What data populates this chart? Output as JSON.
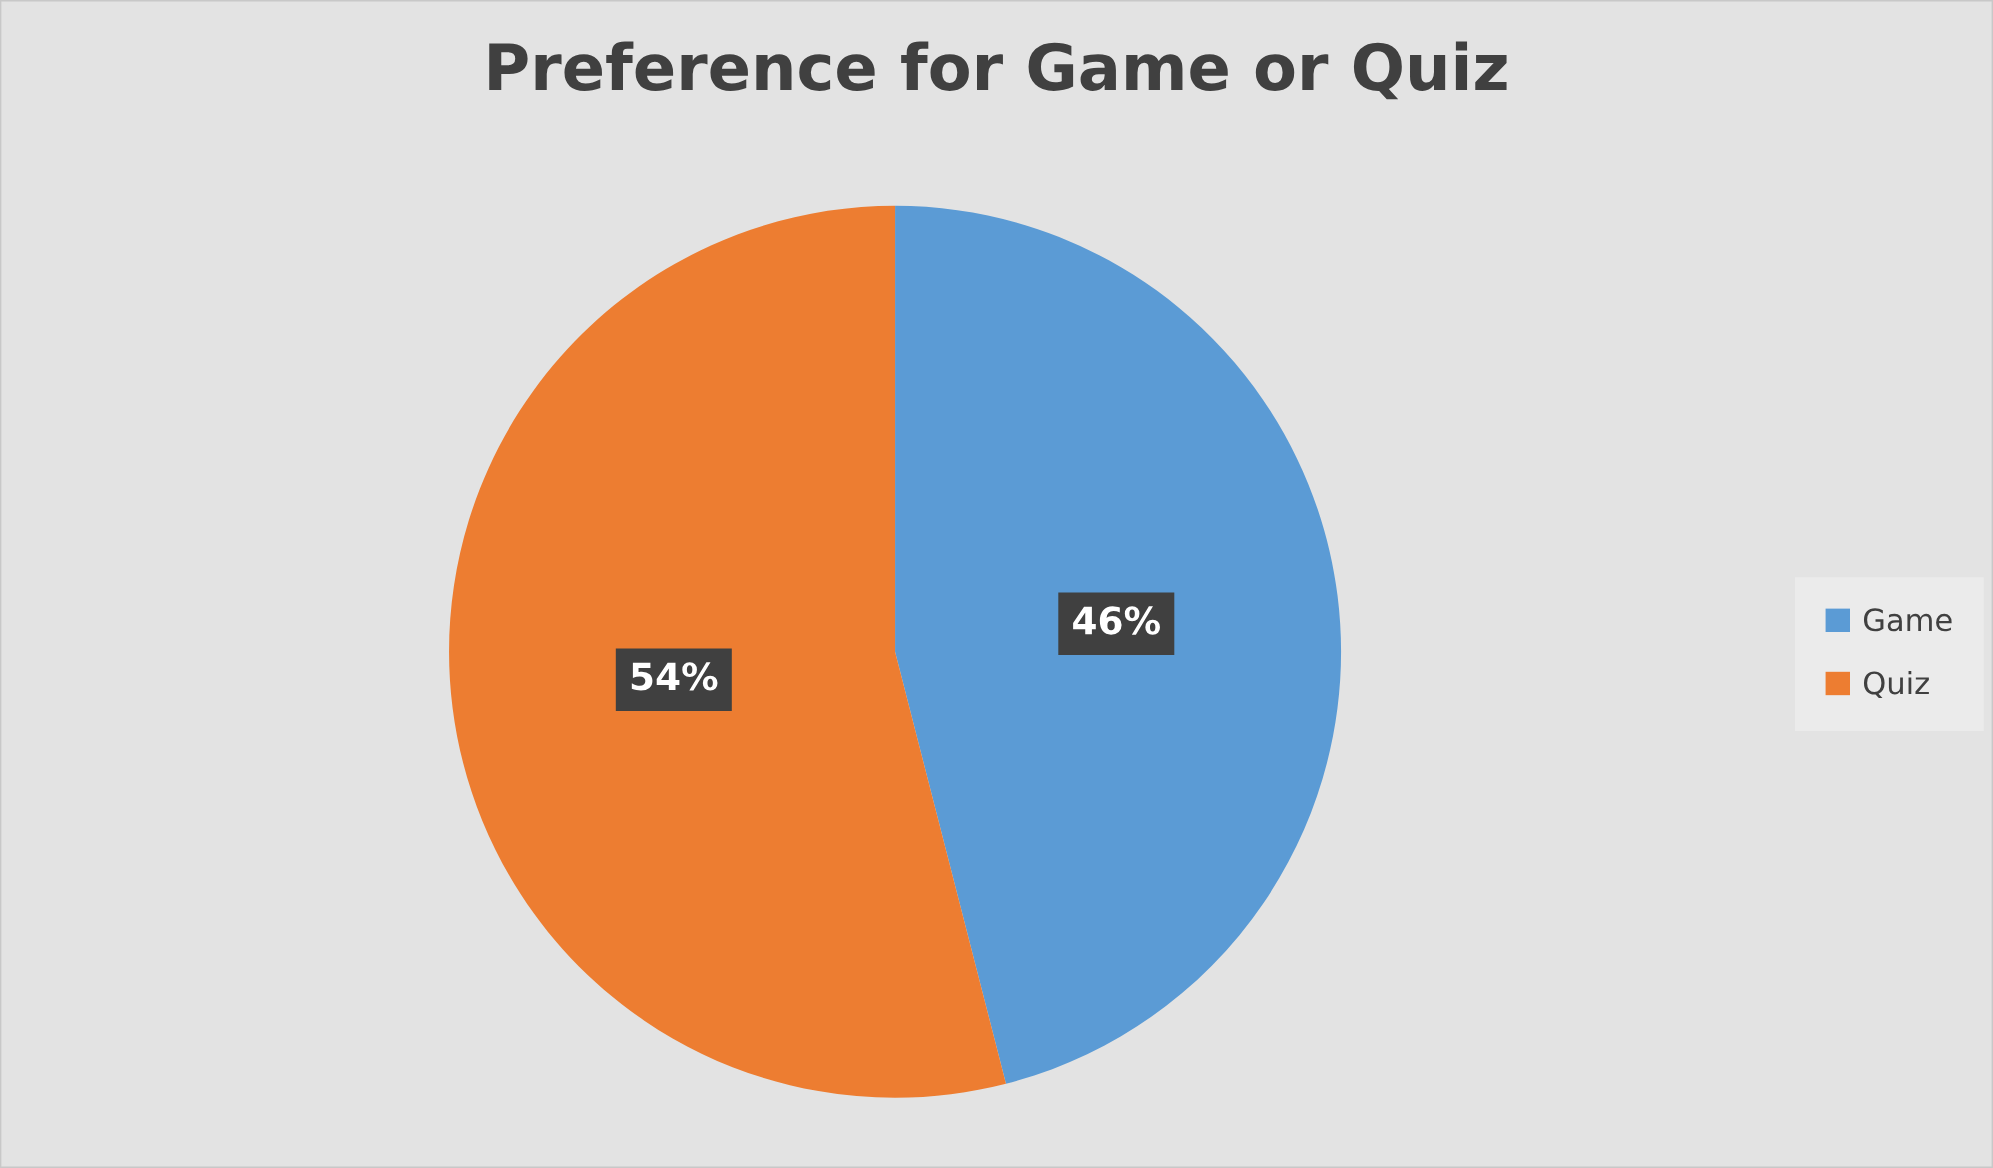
{
  "chart_data": {
    "type": "pie",
    "title": "Preference for Game or Quiz",
    "categories": [
      "Game",
      "Quiz"
    ],
    "values": [
      46,
      54
    ],
    "colors": [
      "#5b9bd5",
      "#ed7d31"
    ],
    "value_labels": [
      "46%",
      "54%"
    ],
    "legend": "right"
  }
}
